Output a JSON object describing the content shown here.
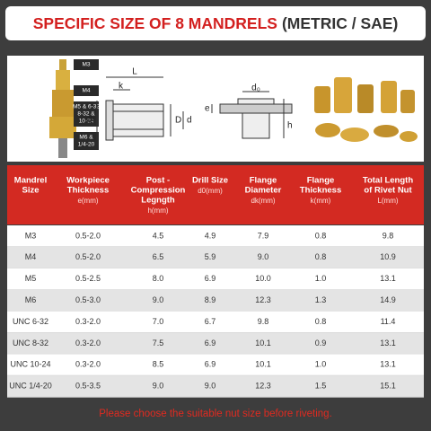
{
  "header": {
    "title": "SPECIFIC SIZE OF 8 MANDRELS",
    "subtitle": "(METRIC / SAE)"
  },
  "diagram": {
    "drill_labels": [
      [
        "M3"
      ],
      [
        "M4"
      ],
      [
        "M5 & 6-32",
        "8-32 &",
        "10-24"
      ],
      [
        "M6 &",
        "1/4-20"
      ]
    ],
    "rivet_labels": {
      "L": "L",
      "k": "k",
      "dk": "dk",
      "D": "D",
      "d": "d"
    },
    "hole_labels": {
      "d0": "d₀",
      "e": "e",
      "h": "h"
    }
  },
  "table": {
    "columns": [
      {
        "lines": [
          "Mandrel",
          "Size"
        ]
      },
      {
        "lines": [
          "Workpiece",
          "Thickness"
        ],
        "unit": "e(mm)"
      },
      {
        "lines": [
          "Post -",
          "Compression",
          "Legngth"
        ],
        "unit": "h(mm)"
      },
      {
        "lines": [
          "Drill Size"
        ],
        "unit": "d0(mm)"
      },
      {
        "lines": [
          "Flange",
          "Diameter"
        ],
        "unit": "dk(mm)"
      },
      {
        "lines": [
          "Flange",
          "Thickness"
        ],
        "unit": "k(mm)"
      },
      {
        "lines": [
          "Total Length",
          "of Rivet Nut"
        ],
        "unit": "L(mm)"
      }
    ],
    "rows": [
      [
        "M3",
        "0.5-2.0",
        "4.5",
        "4.9",
        "7.9",
        "0.8",
        "9.8"
      ],
      [
        "M4",
        "0.5-2.0",
        "6.5",
        "5.9",
        "9.0",
        "0.8",
        "10.9"
      ],
      [
        "M5",
        "0.5-2.5",
        "8.0",
        "6.9",
        "10.0",
        "1.0",
        "13.1"
      ],
      [
        "M6",
        "0.5-3.0",
        "9.0",
        "8.9",
        "12.3",
        "1.3",
        "14.9"
      ],
      [
        "UNC 6-32",
        "0.3-2.0",
        "7.0",
        "6.7",
        "9.8",
        "0.8",
        "11.4"
      ],
      [
        "UNC 8-32",
        "0.3-2.0",
        "7.5",
        "6.9",
        "10.1",
        "0.9",
        "13.1"
      ],
      [
        "UNC 10-24",
        "0.3-2.0",
        "8.5",
        "6.9",
        "10.1",
        "1.0",
        "13.1"
      ],
      [
        "UNC 1/4-20",
        "0.5-3.5",
        "9.0",
        "9.0",
        "12.3",
        "1.5",
        "15.1"
      ]
    ]
  },
  "footer": {
    "note": "Please choose the suitable nut size before riveting."
  }
}
